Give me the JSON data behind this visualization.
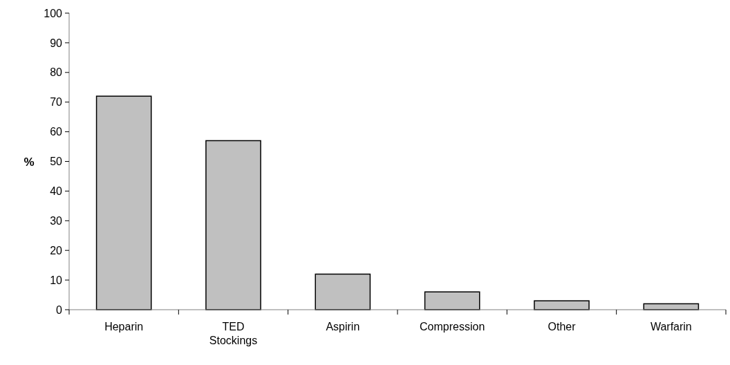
{
  "chart_data": {
    "type": "bar",
    "ylabel": "%",
    "categories": [
      "Heparin",
      "TED Stockings",
      "Aspirin",
      "Compression",
      "Other",
      "Warfarin"
    ],
    "values": [
      72,
      57,
      12,
      6,
      3,
      2
    ],
    "color": "#c0c0c0",
    "ylim": [
      0,
      100
    ],
    "yticks": [
      0,
      10,
      20,
      30,
      40,
      50,
      60,
      70,
      80,
      90,
      100
    ]
  }
}
